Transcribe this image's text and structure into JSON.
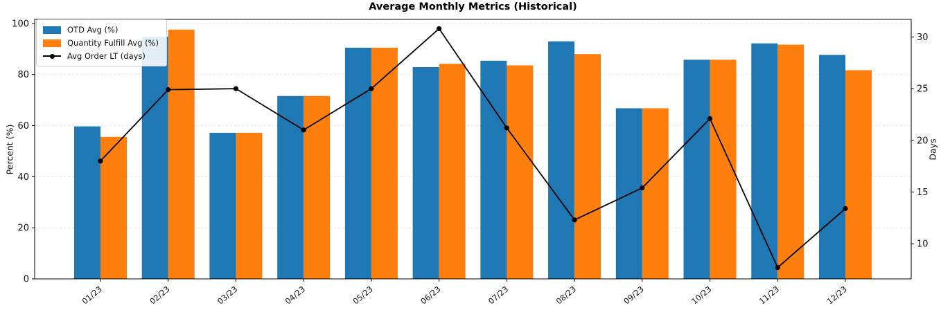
{
  "chart_data": {
    "type": "bar+line",
    "title": "Average Monthly Metrics (Historical)",
    "categories": [
      "01/23",
      "02/23",
      "03/23",
      "04/23",
      "05/23",
      "06/23",
      "07/23",
      "08/23",
      "09/23",
      "10/23",
      "11/23",
      "12/23"
    ],
    "bar_series": [
      {
        "name": "OTD Avg (%)",
        "axis": "left",
        "color": "#1f77b4",
        "values": [
          59.7,
          94.8,
          57.2,
          71.6,
          90.5,
          82.9,
          85.4,
          93.0,
          66.8,
          85.8,
          92.2,
          87.7
        ]
      },
      {
        "name": "Quantity Fulfill Avg (%)",
        "axis": "left",
        "color": "#ff7f0e",
        "values": [
          55.6,
          97.6,
          57.2,
          71.6,
          90.5,
          84.2,
          83.6,
          88.0,
          66.8,
          85.8,
          91.7,
          81.7
        ]
      }
    ],
    "line_series": [
      {
        "name": "Avg Order LT (days)",
        "axis": "right",
        "color": "#000000",
        "marker": "circle",
        "values": [
          18.0,
          24.9,
          25.0,
          21.0,
          25.0,
          30.8,
          21.2,
          12.3,
          15.4,
          22.1,
          7.7,
          13.4
        ]
      }
    ],
    "ylabel_left": "Percent (%)",
    "ylabel_right": "Days",
    "yticks_left": [
      0,
      20,
      40,
      60,
      80,
      100
    ],
    "yticks_right": [
      10,
      15,
      20,
      25,
      30
    ],
    "ylim_left": [
      0,
      101.6
    ],
    "ylim_right": [
      6.6,
      31.7
    ],
    "grid": "horizontal-dashed",
    "legend_position": "upper-left"
  }
}
